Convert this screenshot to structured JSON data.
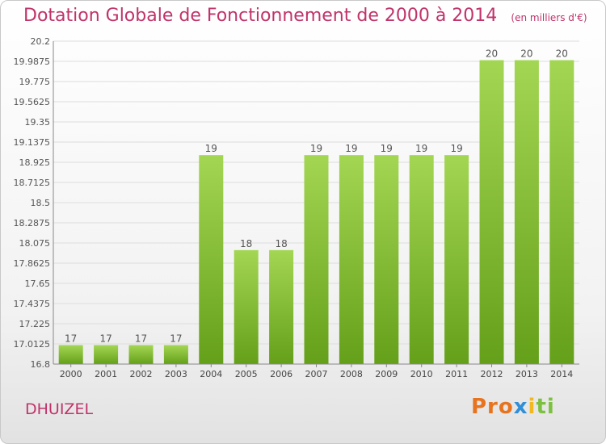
{
  "header": {
    "title": "Dotation Globale de Fonctionnement de 2000 à 2014",
    "subtitle": "(en milliers d'€)"
  },
  "footer": {
    "commune": "DHUIZEL",
    "logo": [
      "Pro",
      "x",
      "i",
      "ti"
    ]
  },
  "colors": {
    "title": "#c0336a",
    "bar_light": "#9fd34f",
    "bar_dark": "#67a11b",
    "grid": "#dddddd"
  },
  "chart_data": {
    "type": "bar",
    "title": "Dotation Globale de Fonctionnement de 2000 à 2014",
    "subtitle": "(en milliers d'€)",
    "categories": [
      "2000",
      "2001",
      "2002",
      "2003",
      "2004",
      "2005",
      "2006",
      "2007",
      "2008",
      "2009",
      "2010",
      "2011",
      "2012",
      "2013",
      "2014"
    ],
    "values": [
      17,
      17,
      17,
      17,
      19,
      18,
      18,
      19,
      19,
      19,
      19,
      19,
      20,
      20,
      20
    ],
    "data_labels": [
      "17",
      "17",
      "17",
      "17",
      "19",
      "18",
      "18",
      "19",
      "19",
      "19",
      "19",
      "19",
      "20",
      "20",
      "20"
    ],
    "ylim": [
      16.8,
      20.2
    ],
    "yticks": [
      16.8,
      17.0125,
      17.225,
      17.4375,
      17.65,
      17.8625,
      18.075,
      18.2875,
      18.5,
      18.7125,
      18.925,
      19.1375,
      19.35,
      19.5625,
      19.775,
      19.9875,
      20.2
    ],
    "ytick_labels": [
      "16.8",
      "17.0125",
      "17.225",
      "17.4375",
      "17.65",
      "17.8625",
      "18.075",
      "18.2875",
      "18.5",
      "18.7125",
      "18.925",
      "19.1375",
      "19.35",
      "19.5625",
      "19.775",
      "19.9875",
      "20.2"
    ],
    "grid": true,
    "legend": "none"
  }
}
